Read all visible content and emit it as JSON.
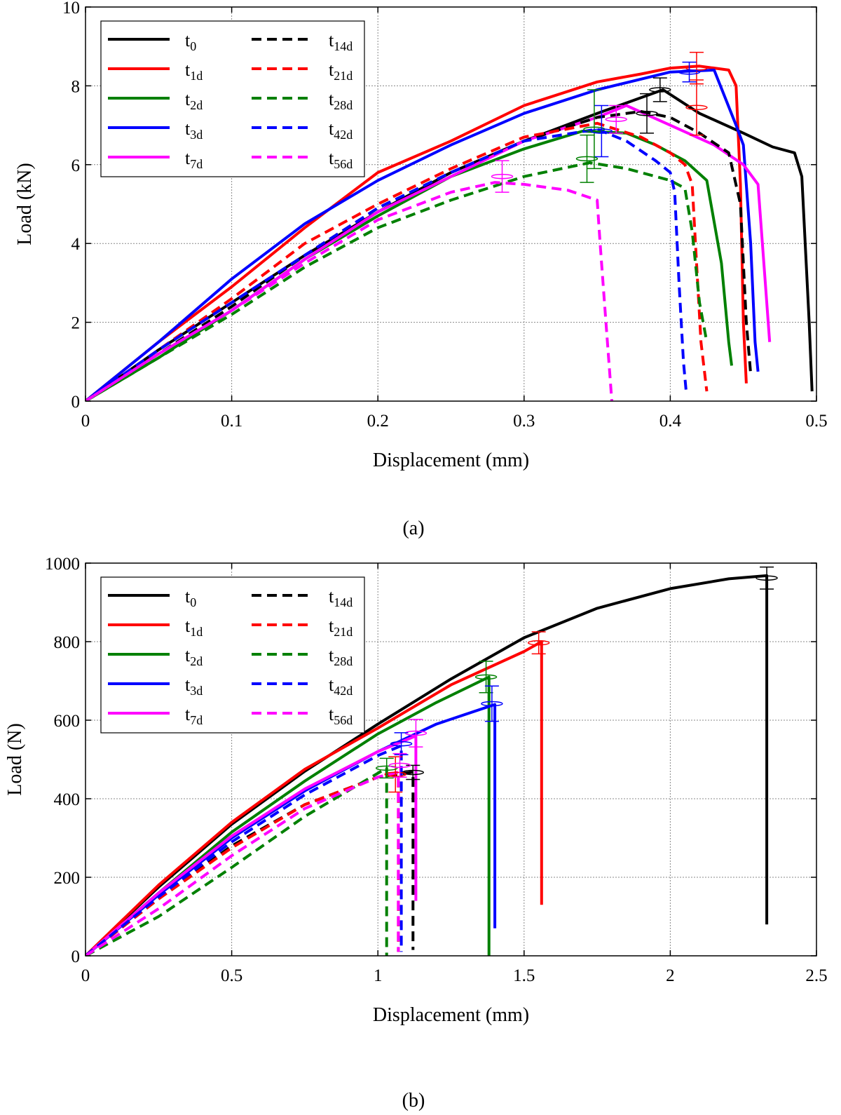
{
  "chart_data": [
    {
      "type": "line",
      "caption": "(a)",
      "xlabel": "Displacement (mm)",
      "ylabel": "Load (kN)",
      "xlim": [
        0,
        0.5
      ],
      "ylim": [
        0,
        10
      ],
      "xticks": [
        0,
        0.1,
        0.2,
        0.3,
        0.4,
        0.5
      ],
      "xtick_labels": [
        "0",
        "0.1",
        "0.2",
        "0.3",
        "0.4",
        "0.5"
      ],
      "yticks": [
        0,
        2,
        4,
        6,
        8,
        10
      ],
      "ytick_labels": [
        "0",
        "2",
        "4",
        "6",
        "8",
        "10"
      ],
      "grid": true,
      "legend_position": "top-left",
      "series": [
        {
          "name": "t0",
          "label_base": "t",
          "label_sub": "0",
          "color": "#000000",
          "style": "solid",
          "x": [
            0,
            0.05,
            0.1,
            0.15,
            0.2,
            0.25,
            0.3,
            0.35,
            0.38,
            0.395,
            0.42,
            0.45,
            0.47,
            0.485,
            0.49,
            0.495,
            0.497
          ],
          "y": [
            0,
            1.3,
            2.5,
            3.7,
            4.8,
            5.8,
            6.6,
            7.3,
            7.7,
            7.9,
            7.3,
            6.8,
            6.45,
            6.3,
            5.7,
            2.0,
            0.25
          ],
          "error_bars": [
            {
              "x": 0.393,
              "y": 7.9,
              "err": 0.3
            },
            {
              "x": 0.384,
              "y": 7.3,
              "err": 0.5
            }
          ]
        },
        {
          "name": "t1d",
          "label_base": "t",
          "label_sub": "1d",
          "color": "#ff0000",
          "style": "solid",
          "x": [
            0,
            0.05,
            0.1,
            0.15,
            0.2,
            0.25,
            0.3,
            0.35,
            0.38,
            0.4,
            0.42,
            0.44,
            0.445,
            0.448,
            0.45,
            0.452
          ],
          "y": [
            0,
            1.5,
            2.9,
            4.4,
            5.8,
            6.6,
            7.5,
            8.1,
            8.3,
            8.45,
            8.5,
            8.4,
            8.0,
            5.5,
            2.0,
            0.45
          ],
          "error_bars": [
            {
              "x": 0.418,
              "y": 8.45,
              "err": 0.4
            },
            {
              "x": 0.418,
              "y": 7.45,
              "err": 0.7
            }
          ]
        },
        {
          "name": "t2d",
          "label_base": "t",
          "label_sub": "2d",
          "color": "#008000",
          "style": "solid",
          "x": [
            0,
            0.05,
            0.1,
            0.15,
            0.2,
            0.25,
            0.3,
            0.34,
            0.37,
            0.39,
            0.41,
            0.425,
            0.435,
            0.44,
            0.442
          ],
          "y": [
            0,
            1.1,
            2.3,
            3.6,
            4.7,
            5.7,
            6.4,
            6.85,
            6.8,
            6.5,
            6.1,
            5.6,
            3.5,
            1.5,
            0.9
          ],
          "error_bars": [
            {
              "x": 0.348,
              "y": 6.9,
              "err": 1.0
            }
          ]
        },
        {
          "name": "t3d",
          "label_base": "t",
          "label_sub": "3d",
          "color": "#0000ff",
          "style": "solid",
          "x": [
            0,
            0.05,
            0.1,
            0.15,
            0.2,
            0.25,
            0.3,
            0.35,
            0.4,
            0.43,
            0.445,
            0.45,
            0.455,
            0.458,
            0.46
          ],
          "y": [
            0,
            1.5,
            3.1,
            4.5,
            5.6,
            6.5,
            7.3,
            7.9,
            8.35,
            8.4,
            7.0,
            6.5,
            4.0,
            1.5,
            0.75
          ],
          "error_bars": [
            {
              "x": 0.413,
              "y": 8.35,
              "err": 0.25
            },
            {
              "x": 0.353,
              "y": 6.85,
              "err": 0.65
            }
          ]
        },
        {
          "name": "t7d",
          "label_base": "t",
          "label_sub": "7d",
          "color": "#ff00ff",
          "style": "solid",
          "x": [
            0,
            0.05,
            0.1,
            0.15,
            0.2,
            0.25,
            0.3,
            0.35,
            0.37,
            0.4,
            0.43,
            0.45,
            0.46,
            0.465,
            0.468
          ],
          "y": [
            0,
            1.2,
            2.3,
            3.6,
            4.8,
            5.7,
            6.6,
            7.2,
            7.5,
            7.0,
            6.5,
            6.0,
            5.5,
            3.0,
            1.5
          ],
          "error_bars": [
            {
              "x": 0.363,
              "y": 7.15,
              "err": 0.35
            }
          ]
        },
        {
          "name": "t14d",
          "label_base": "t",
          "label_sub": "14d",
          "color": "#000000",
          "style": "dashed",
          "x": [
            0,
            0.05,
            0.1,
            0.15,
            0.2,
            0.25,
            0.3,
            0.35,
            0.38,
            0.4,
            0.42,
            0.44,
            0.448,
            0.452,
            0.455
          ],
          "y": [
            0,
            1.2,
            2.4,
            3.7,
            4.9,
            5.8,
            6.6,
            7.2,
            7.35,
            7.2,
            6.8,
            6.3,
            5.0,
            2.0,
            0.7
          ],
          "error_bars": []
        },
        {
          "name": "t21d",
          "label_base": "t",
          "label_sub": "21d",
          "color": "#ff0000",
          "style": "dashed",
          "x": [
            0,
            0.05,
            0.1,
            0.15,
            0.2,
            0.25,
            0.3,
            0.35,
            0.38,
            0.4,
            0.41,
            0.415,
            0.418,
            0.421,
            0.425
          ],
          "y": [
            0,
            1.3,
            2.6,
            4.0,
            5.0,
            5.9,
            6.7,
            7.05,
            6.7,
            6.3,
            6.0,
            5.5,
            3.5,
            1.5,
            0.25
          ],
          "error_bars": []
        },
        {
          "name": "t28d",
          "label_base": "t",
          "label_sub": "28d",
          "color": "#008000",
          "style": "dashed",
          "x": [
            0,
            0.05,
            0.1,
            0.15,
            0.2,
            0.25,
            0.3,
            0.345,
            0.37,
            0.4,
            0.41,
            0.415,
            0.42,
            0.425
          ],
          "y": [
            0,
            1.1,
            2.2,
            3.4,
            4.4,
            5.1,
            5.7,
            6.05,
            5.9,
            5.6,
            5.4,
            4.3,
            2.5,
            1.5
          ],
          "error_bars": [
            {
              "x": 0.343,
              "y": 6.15,
              "err": 0.6
            }
          ]
        },
        {
          "name": "t42d",
          "label_base": "t",
          "label_sub": "42d",
          "color": "#0000ff",
          "style": "dashed",
          "x": [
            0,
            0.05,
            0.1,
            0.15,
            0.2,
            0.25,
            0.3,
            0.35,
            0.37,
            0.39,
            0.4,
            0.403,
            0.406,
            0.409,
            0.411
          ],
          "y": [
            0,
            1.3,
            2.5,
            3.7,
            4.9,
            5.8,
            6.6,
            6.9,
            6.6,
            6.1,
            5.8,
            5.3,
            3.0,
            1.0,
            0.2
          ],
          "error_bars": []
        },
        {
          "name": "t56d",
          "label_base": "t",
          "label_sub": "56d",
          "color": "#ff00ff",
          "style": "dashed",
          "x": [
            0,
            0.05,
            0.1,
            0.15,
            0.2,
            0.25,
            0.28,
            0.3,
            0.33,
            0.35,
            0.352,
            0.355,
            0.358,
            0.36
          ],
          "y": [
            0,
            1.2,
            2.3,
            3.5,
            4.6,
            5.3,
            5.55,
            5.5,
            5.35,
            5.1,
            4.0,
            2.5,
            1.0,
            0
          ],
          "error_bars": [
            {
              "x": 0.285,
              "y": 5.7,
              "err": 0.4
            }
          ]
        }
      ]
    },
    {
      "type": "line",
      "caption": "(b)",
      "xlabel": "Displacement (mm)",
      "ylabel": "Load (N)",
      "xlim": [
        0,
        2.5
      ],
      "ylim": [
        0,
        1000
      ],
      "xticks": [
        0,
        0.5,
        1,
        1.5,
        2,
        2.5
      ],
      "xtick_labels": [
        "0",
        "0.5",
        "1",
        "1.5",
        "2",
        "2.5"
      ],
      "yticks": [
        0,
        200,
        400,
        600,
        800,
        1000
      ],
      "ytick_labels": [
        "0",
        "200",
        "400",
        "600",
        "800",
        "1000"
      ],
      "grid": true,
      "legend_position": "top-left",
      "series": [
        {
          "name": "t0",
          "label_base": "t",
          "label_sub": "0",
          "color": "#000000",
          "style": "solid",
          "x": [
            0,
            0.25,
            0.5,
            0.75,
            1.0,
            1.25,
            1.5,
            1.75,
            2.0,
            2.2,
            2.33,
            2.33,
            2.33
          ],
          "y": [
            0,
            175,
            335,
            470,
            590,
            705,
            810,
            885,
            935,
            960,
            968,
            500,
            80
          ],
          "error_bars": [
            {
              "x": 2.33,
              "y": 962,
              "err": 28
            }
          ]
        },
        {
          "name": "t1d",
          "label_base": "t",
          "label_sub": "1d",
          "color": "#ff0000",
          "style": "solid",
          "x": [
            0,
            0.25,
            0.5,
            0.75,
            1.0,
            1.25,
            1.5,
            1.56,
            1.56,
            1.56
          ],
          "y": [
            0,
            180,
            340,
            475,
            580,
            690,
            775,
            800,
            400,
            130
          ],
          "error_bars": [
            {
              "x": 1.55,
              "y": 797,
              "err": 28
            }
          ]
        },
        {
          "name": "t2d",
          "label_base": "t",
          "label_sub": "2d",
          "color": "#008000",
          "style": "solid",
          "x": [
            0,
            0.25,
            0.5,
            0.75,
            1.0,
            1.2,
            1.38,
            1.38,
            1.38
          ],
          "y": [
            0,
            160,
            315,
            445,
            565,
            645,
            710,
            400,
            0
          ],
          "error_bars": [
            {
              "x": 1.37,
              "y": 710,
              "err": 40
            }
          ]
        },
        {
          "name": "t3d",
          "label_base": "t",
          "label_sub": "3d",
          "color": "#0000ff",
          "style": "solid",
          "x": [
            0,
            0.25,
            0.5,
            0.75,
            1.0,
            1.2,
            1.4,
            1.4,
            1.4
          ],
          "y": [
            0,
            155,
            300,
            420,
            520,
            590,
            640,
            350,
            70
          ],
          "error_bars": [
            {
              "x": 1.39,
              "y": 642,
              "err": 45
            }
          ]
        },
        {
          "name": "t7d",
          "label_base": "t",
          "label_sub": "7d",
          "color": "#ff00ff",
          "style": "solid",
          "x": [
            0,
            0.25,
            0.5,
            0.75,
            1.0,
            1.13,
            1.13,
            1.13
          ],
          "y": [
            0,
            160,
            305,
            425,
            520,
            560,
            400,
            140
          ],
          "error_bars": [
            {
              "x": 1.13,
              "y": 567,
              "err": 35
            }
          ]
        },
        {
          "name": "t14d",
          "label_base": "t",
          "label_sub": "14d",
          "color": "#000000",
          "style": "dashed",
          "x": [
            0,
            0.25,
            0.5,
            0.75,
            1.0,
            1.12,
            1.12,
            1.12
          ],
          "y": [
            0,
            145,
            280,
            385,
            455,
            468,
            250,
            15
          ],
          "error_bars": [
            {
              "x": 1.12,
              "y": 467,
              "err": 18
            }
          ]
        },
        {
          "name": "t21d",
          "label_base": "t",
          "label_sub": "21d",
          "color": "#ff0000",
          "style": "dashed",
          "x": [
            0,
            0.25,
            0.5,
            0.75,
            1.0,
            1.07,
            1.07,
            1.07
          ],
          "y": [
            0,
            145,
            275,
            385,
            455,
            465,
            250,
            10
          ],
          "error_bars": [
            {
              "x": 1.06,
              "y": 462,
              "err": 45
            }
          ]
        },
        {
          "name": "t28d",
          "label_base": "t",
          "label_sub": "28d",
          "color": "#008000",
          "style": "dashed",
          "x": [
            0,
            0.25,
            0.5,
            0.75,
            1.0,
            1.03,
            1.03,
            1.03
          ],
          "y": [
            0,
            100,
            225,
            355,
            465,
            478,
            250,
            0
          ],
          "error_bars": [
            {
              "x": 1.03,
              "y": 478,
              "err": 25
            }
          ]
        },
        {
          "name": "t42d",
          "label_base": "t",
          "label_sub": "42d",
          "color": "#0000ff",
          "style": "dashed",
          "x": [
            0,
            0.25,
            0.5,
            0.75,
            1.0,
            1.08,
            1.08,
            1.08
          ],
          "y": [
            0,
            150,
            290,
            410,
            510,
            535,
            300,
            10
          ],
          "error_bars": [
            {
              "x": 1.08,
              "y": 540,
              "err": 28
            }
          ]
        },
        {
          "name": "t56d",
          "label_base": "t",
          "label_sub": "56d",
          "color": "#ff00ff",
          "style": "dashed",
          "x": [
            0,
            0.25,
            0.5,
            0.75,
            1.0,
            1.07,
            1.07,
            1.07
          ],
          "y": [
            0,
            120,
            255,
            375,
            455,
            468,
            250,
            10
          ],
          "error_bars": [
            {
              "x": 1.075,
              "y": 485,
              "err": 30
            }
          ]
        }
      ]
    }
  ]
}
